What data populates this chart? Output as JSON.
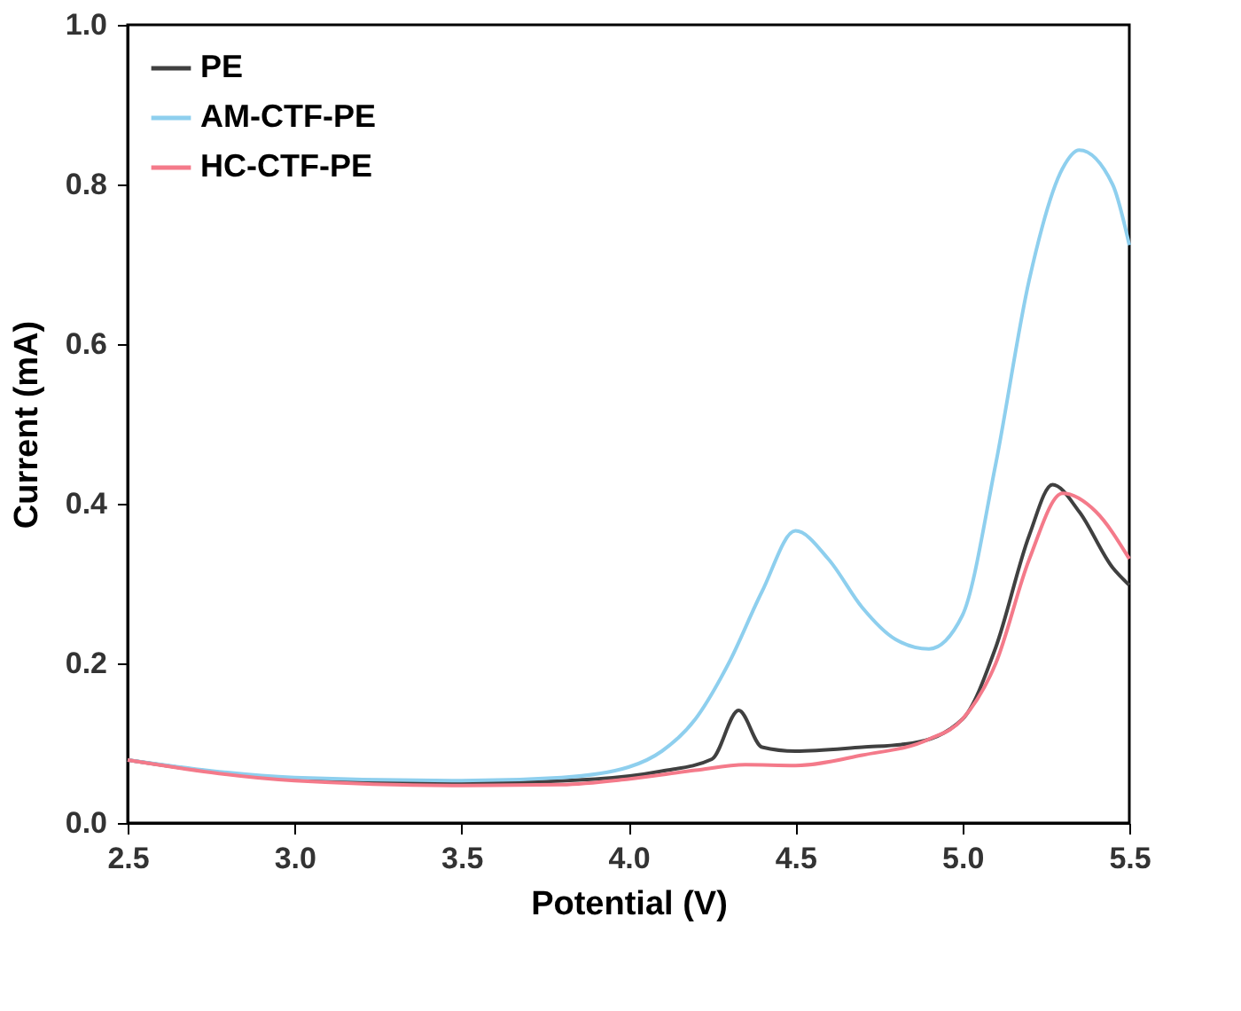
{
  "chart_data": {
    "type": "line",
    "xlabel": "Potential (V)",
    "ylabel": "Current (mA)",
    "xlim": [
      2.5,
      5.5
    ],
    "ylim": [
      0,
      1.0
    ],
    "xticks": [
      2.5,
      {
        "value": 3,
        "label": "3.0"
      },
      3.5,
      {
        "value": 4,
        "label": "4.0"
      },
      4.5,
      {
        "value": 5,
        "label": "5.0"
      },
      5.5
    ],
    "yticks": [
      {
        "value": 0,
        "label": "0.0"
      },
      0.2,
      0.4,
      0.6,
      0.8,
      {
        "value": 1,
        "label": "1.0"
      }
    ],
    "grid": false,
    "legend": "top left",
    "marker": "none",
    "line_style": "solid",
    "series": [
      {
        "name": "PE",
        "color": "#404040",
        "x": [
          2.5,
          3.0,
          3.5,
          3.9,
          4.1,
          4.25,
          4.33,
          4.4,
          4.5,
          4.7,
          4.85,
          5.0,
          5.1,
          5.2,
          5.27,
          5.35,
          5.45,
          5.5
        ],
        "values": [
          0.079,
          0.055,
          0.05,
          0.055,
          0.065,
          0.08,
          0.141,
          0.095,
          0.09,
          0.095,
          0.1,
          0.13,
          0.22,
          0.36,
          0.424,
          0.39,
          0.32,
          0.298
        ]
      },
      {
        "name": "AM-CTF-PE",
        "color": "#8ecfee",
        "x": [
          2.5,
          3.0,
          3.5,
          3.8,
          4.0,
          4.1,
          4.2,
          4.3,
          4.4,
          4.5,
          4.6,
          4.7,
          4.8,
          4.9,
          5.0,
          5.1,
          5.2,
          5.3,
          5.35,
          5.45,
          5.5
        ],
        "values": [
          0.079,
          0.057,
          0.053,
          0.057,
          0.07,
          0.09,
          0.13,
          0.2,
          0.29,
          0.366,
          0.33,
          0.27,
          0.23,
          0.218,
          0.26,
          0.45,
          0.68,
          0.82,
          0.843,
          0.8,
          0.724
        ]
      },
      {
        "name": "HC-CTF-PE",
        "color": "#f47a8a",
        "x": [
          2.5,
          3.0,
          3.5,
          3.8,
          4.0,
          4.2,
          4.35,
          4.5,
          4.7,
          4.9,
          5.0,
          5.1,
          5.2,
          5.3,
          5.4,
          5.5
        ],
        "values": [
          0.079,
          0.053,
          0.047,
          0.048,
          0.055,
          0.066,
          0.073,
          0.072,
          0.085,
          0.105,
          0.13,
          0.2,
          0.33,
          0.413,
          0.39,
          0.331
        ]
      }
    ]
  }
}
